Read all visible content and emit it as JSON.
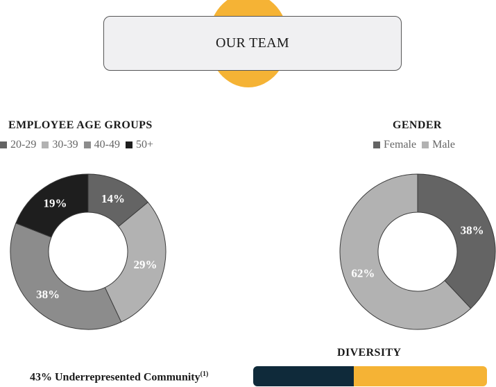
{
  "header": {
    "title": "OUR TEAM",
    "accent_color": "#f5b335"
  },
  "chart_data": [
    {
      "type": "pie",
      "variant": "donut",
      "title": "EMPLOYEE AGE GROUPS",
      "legend_position": "top-left",
      "categories": [
        "20-29",
        "30-39",
        "40-49",
        "50+"
      ],
      "values": [
        14,
        29,
        38,
        19
      ],
      "labels": [
        "14%",
        "29%",
        "38%",
        "19%"
      ],
      "colors": [
        "#646464",
        "#b2b2b2",
        "#8c8c8c",
        "#1e1e1e"
      ]
    },
    {
      "type": "pie",
      "variant": "donut",
      "title": "GENDER",
      "legend_position": "top-center",
      "categories": [
        "Female",
        "Male"
      ],
      "values": [
        38,
        62
      ],
      "labels": [
        "38%",
        "62%"
      ],
      "colors": [
        "#646464",
        "#b2b2b2"
      ]
    }
  ],
  "diversity": {
    "title": "DIVERSITY",
    "label": "43% Underrepresented Community",
    "footnote": "(1)",
    "value": 0.43,
    "colors": {
      "filled": "#0f2a3a",
      "remainder": "#f5b335"
    }
  }
}
